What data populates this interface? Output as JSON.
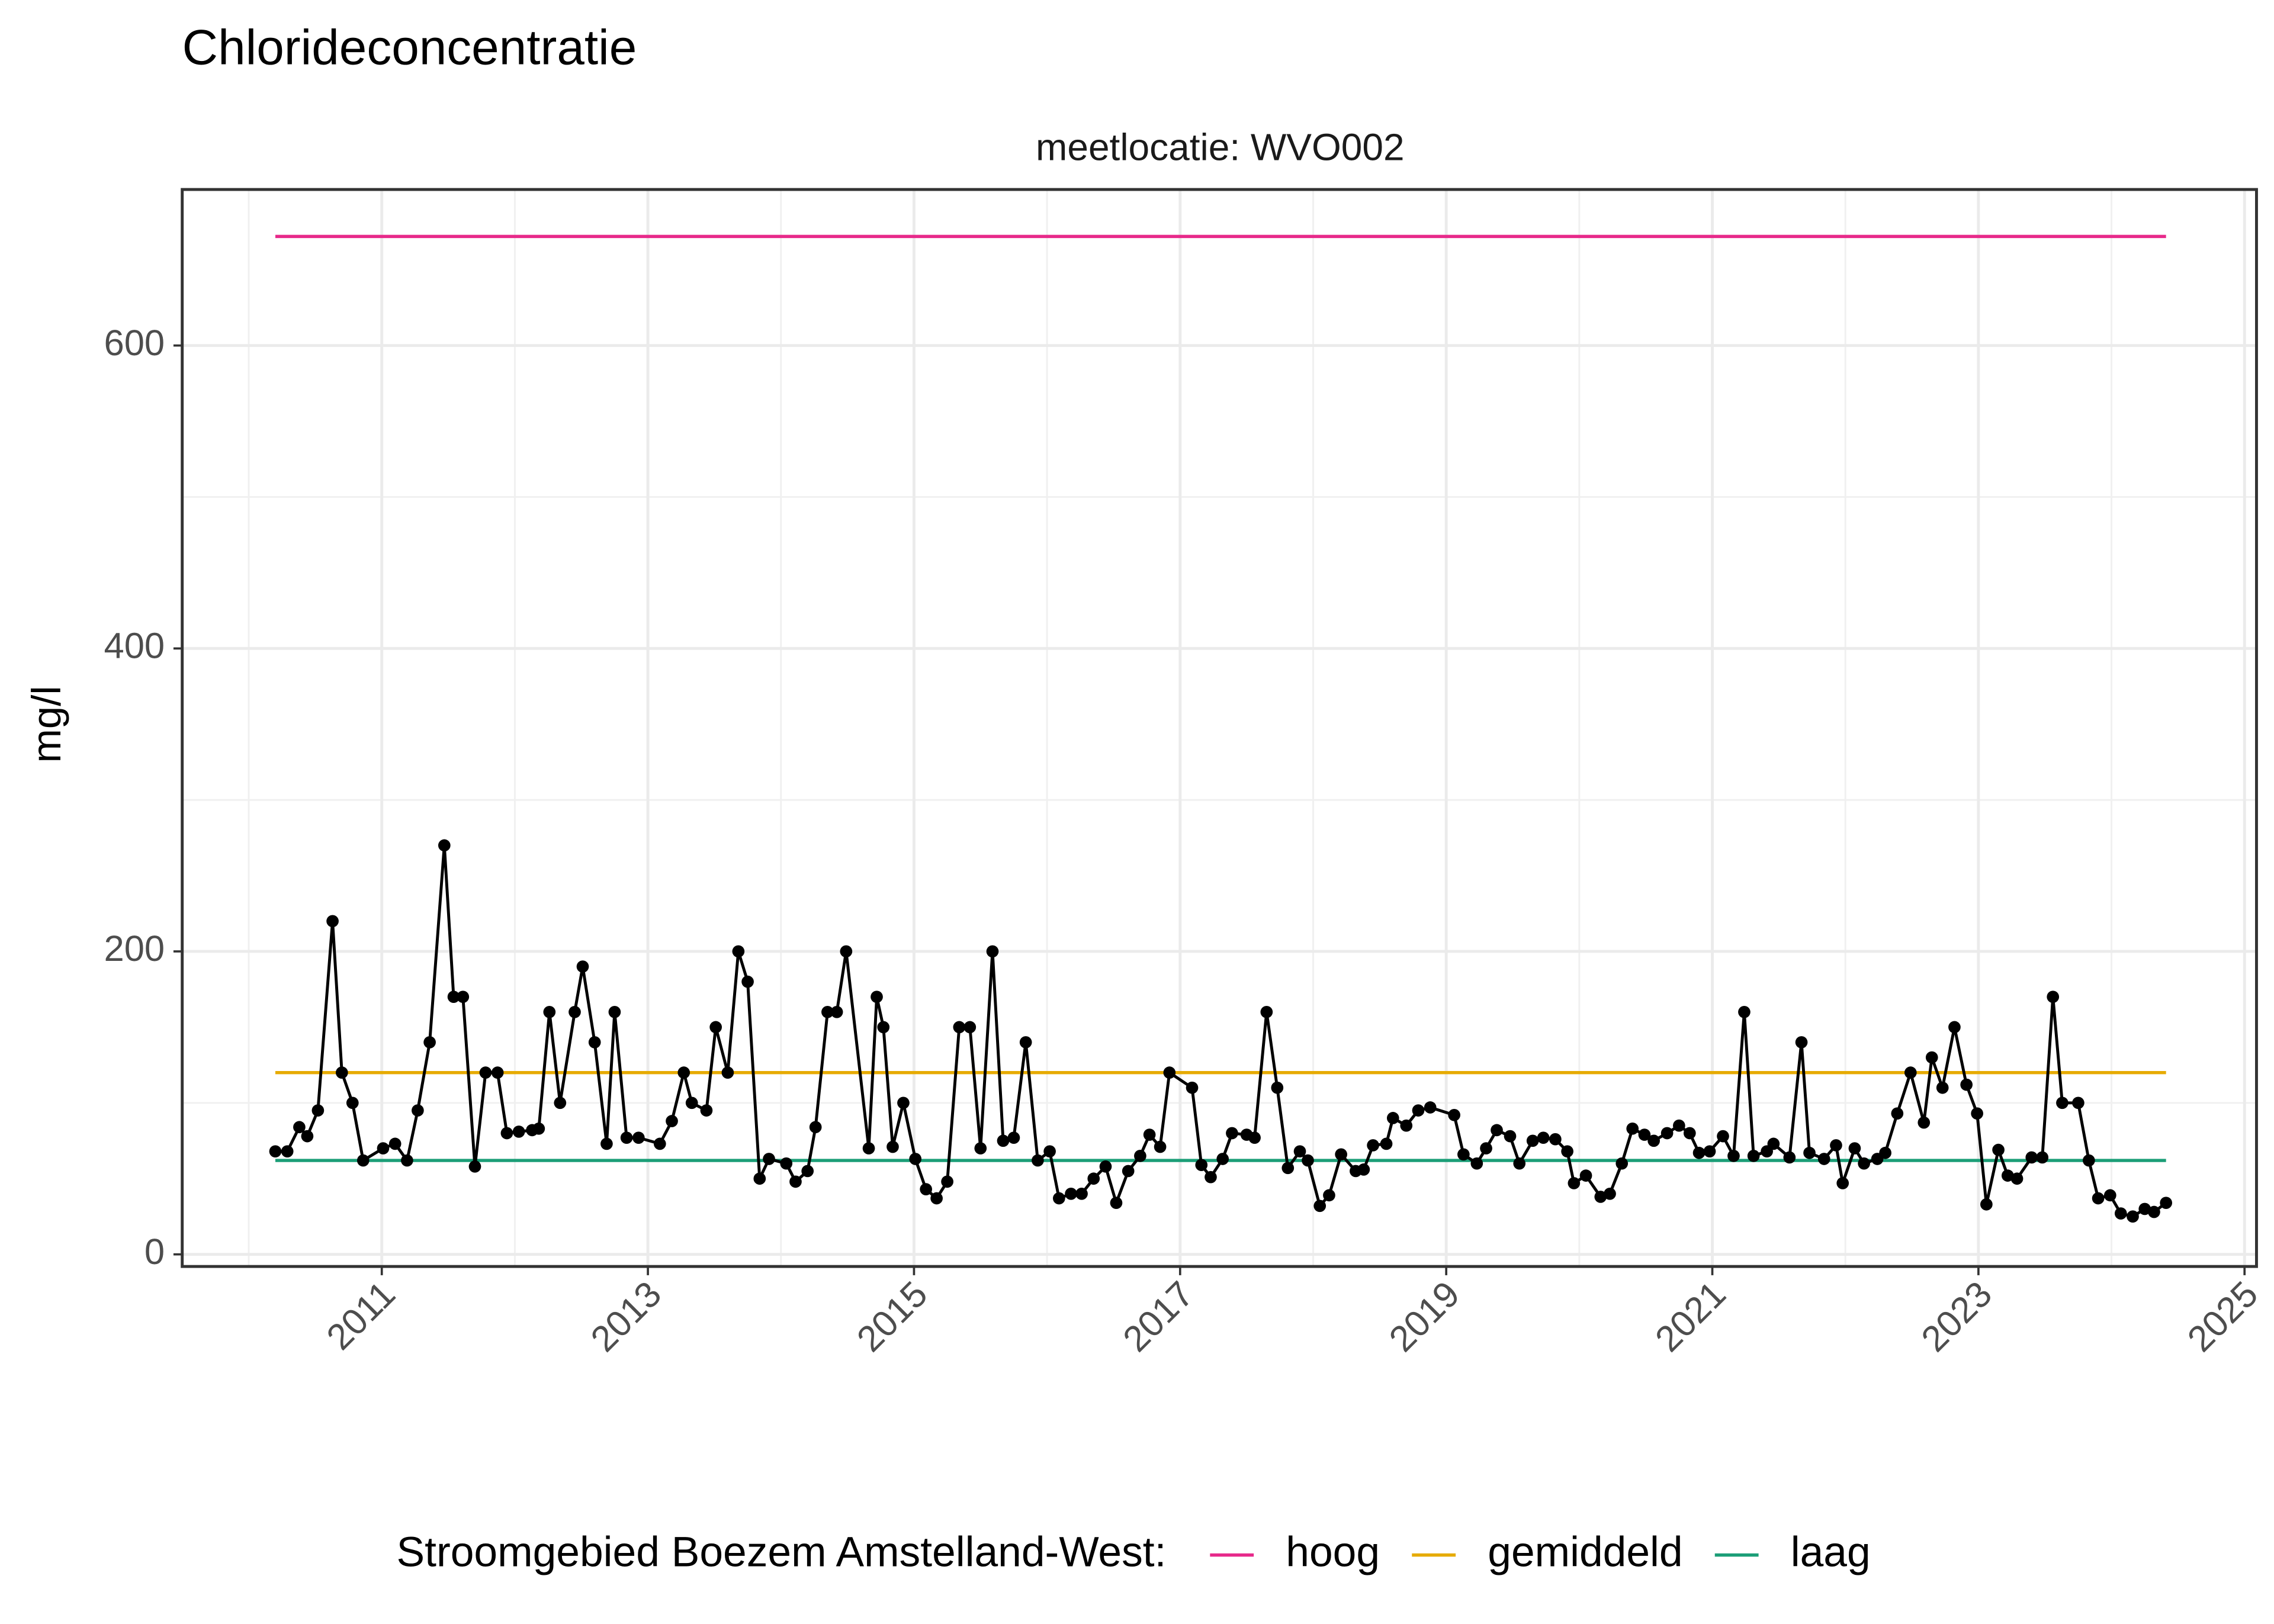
{
  "chart_data": {
    "type": "line",
    "title": "Chlorideconcentratie",
    "subtitle": "meetlocatie: WVO002",
    "y_label": "mg/l",
    "legend_title": "Stroomgebied Boezem Amstelland-West:",
    "xlim": [
      2009.5,
      2025.09
    ],
    "xticks": [
      2011,
      2013,
      2015,
      2017,
      2019,
      2021,
      2023,
      2025
    ],
    "ylim": [
      -8,
      703
    ],
    "yticks": [
      0,
      200,
      400,
      600
    ],
    "grid": true,
    "point_color": "#000000",
    "x": [
      2010.2,
      2010.29,
      2010.38,
      2010.44,
      2010.52,
      2010.63,
      2010.7,
      2010.78,
      2010.86,
      2011.01,
      2011.1,
      2011.19,
      2011.27,
      2011.36,
      2011.47,
      2011.54,
      2011.61,
      2011.7,
      2011.78,
      2011.87,
      2011.94,
      2012.03,
      2012.13,
      2012.18,
      2012.26,
      2012.34,
      2012.45,
      2012.51,
      2012.6,
      2012.69,
      2012.75,
      2012.84,
      2012.93,
      2013.09,
      2013.18,
      2013.27,
      2013.33,
      2013.44,
      2013.51,
      2013.6,
      2013.68,
      2013.75,
      2013.84,
      2013.91,
      2014.04,
      2014.11,
      2014.2,
      2014.26,
      2014.35,
      2014.42,
      2014.49,
      2014.66,
      2014.72,
      2014.77,
      2014.84,
      2014.92,
      2015.01,
      2015.09,
      2015.17,
      2015.25,
      2015.34,
      2015.42,
      2015.5,
      2015.59,
      2015.67,
      2015.75,
      2015.84,
      2015.93,
      2016.02,
      2016.09,
      2016.18,
      2016.26,
      2016.35,
      2016.44,
      2016.52,
      2016.61,
      2016.7,
      2016.77,
      2016.85,
      2016.92,
      2017.09,
      2017.16,
      2017.23,
      2017.32,
      2017.39,
      2017.5,
      2017.56,
      2017.65,
      2017.73,
      2017.81,
      2017.9,
      2017.96,
      2018.05,
      2018.12,
      2018.21,
      2018.32,
      2018.38,
      2018.45,
      2018.55,
      2018.6,
      2018.7,
      2018.79,
      2018.88,
      2019.06,
      2019.13,
      2019.23,
      2019.3,
      2019.38,
      2019.48,
      2019.55,
      2019.65,
      2019.73,
      2019.82,
      2019.91,
      2019.96,
      2020.05,
      2020.16,
      2020.23,
      2020.32,
      2020.4,
      2020.49,
      2020.56,
      2020.66,
      2020.75,
      2020.83,
      2020.9,
      2020.98,
      2021.08,
      2021.16,
      2021.24,
      2021.31,
      2021.41,
      2021.46,
      2021.58,
      2021.67,
      2021.73,
      2021.84,
      2021.93,
      2021.98,
      2022.07,
      2022.14,
      2022.24,
      2022.3,
      2022.39,
      2022.49,
      2022.59,
      2022.65,
      2022.73,
      2022.82,
      2022.91,
      2022.99,
      2023.06,
      2023.15,
      2023.22,
      2023.29,
      2023.4,
      2023.48,
      2023.56,
      2023.63,
      2023.75,
      2023.83,
      2023.9,
      2023.99,
      2024.07,
      2024.16,
      2024.25,
      2024.32,
      2024.41
    ],
    "values": [
      68,
      68,
      84,
      78,
      95,
      220,
      120,
      100,
      62,
      70,
      73,
      62,
      95,
      140,
      270,
      170,
      170,
      58,
      120,
      120,
      80,
      81,
      82,
      83,
      160,
      100,
      160,
      190,
      140,
      73,
      160,
      77,
      77,
      73,
      88,
      120,
      100,
      95,
      150,
      120,
      200,
      180,
      50,
      63,
      60,
      48,
      55,
      84,
      160,
      160,
      200,
      70,
      170,
      150,
      71,
      100,
      63,
      43,
      37,
      48,
      150,
      150,
      70,
      200,
      75,
      77,
      140,
      62,
      68,
      37,
      40,
      40,
      50,
      58,
      34,
      55,
      65,
      79,
      71,
      120,
      110,
      59,
      51,
      63,
      80,
      79,
      77,
      160,
      110,
      57,
      68,
      62,
      32,
      39,
      66,
      55,
      56,
      72,
      73,
      90,
      85,
      95,
      97,
      92,
      66,
      60,
      70,
      82,
      78,
      60,
      75,
      77,
      76,
      68,
      47,
      52,
      38,
      40,
      60,
      83,
      79,
      75,
      80,
      85,
      80,
      67,
      68,
      78,
      65,
      160,
      65,
      68,
      73,
      64,
      140,
      67,
      63,
      72,
      47,
      70,
      60,
      63,
      67,
      93,
      120,
      87,
      130,
      110,
      150,
      112,
      93,
      33,
      69,
      52,
      50,
      64,
      64,
      170,
      100,
      100,
      62,
      37,
      39,
      27,
      25,
      30,
      28,
      34
    ],
    "reference_lines": [
      {
        "name": "hoog",
        "color": "#e7298a",
        "value": 672
      },
      {
        "name": "gemiddeld",
        "color": "#e6ab02",
        "value": 120
      },
      {
        "name": "laag",
        "color": "#1b9e77",
        "value": 62
      }
    ]
  }
}
